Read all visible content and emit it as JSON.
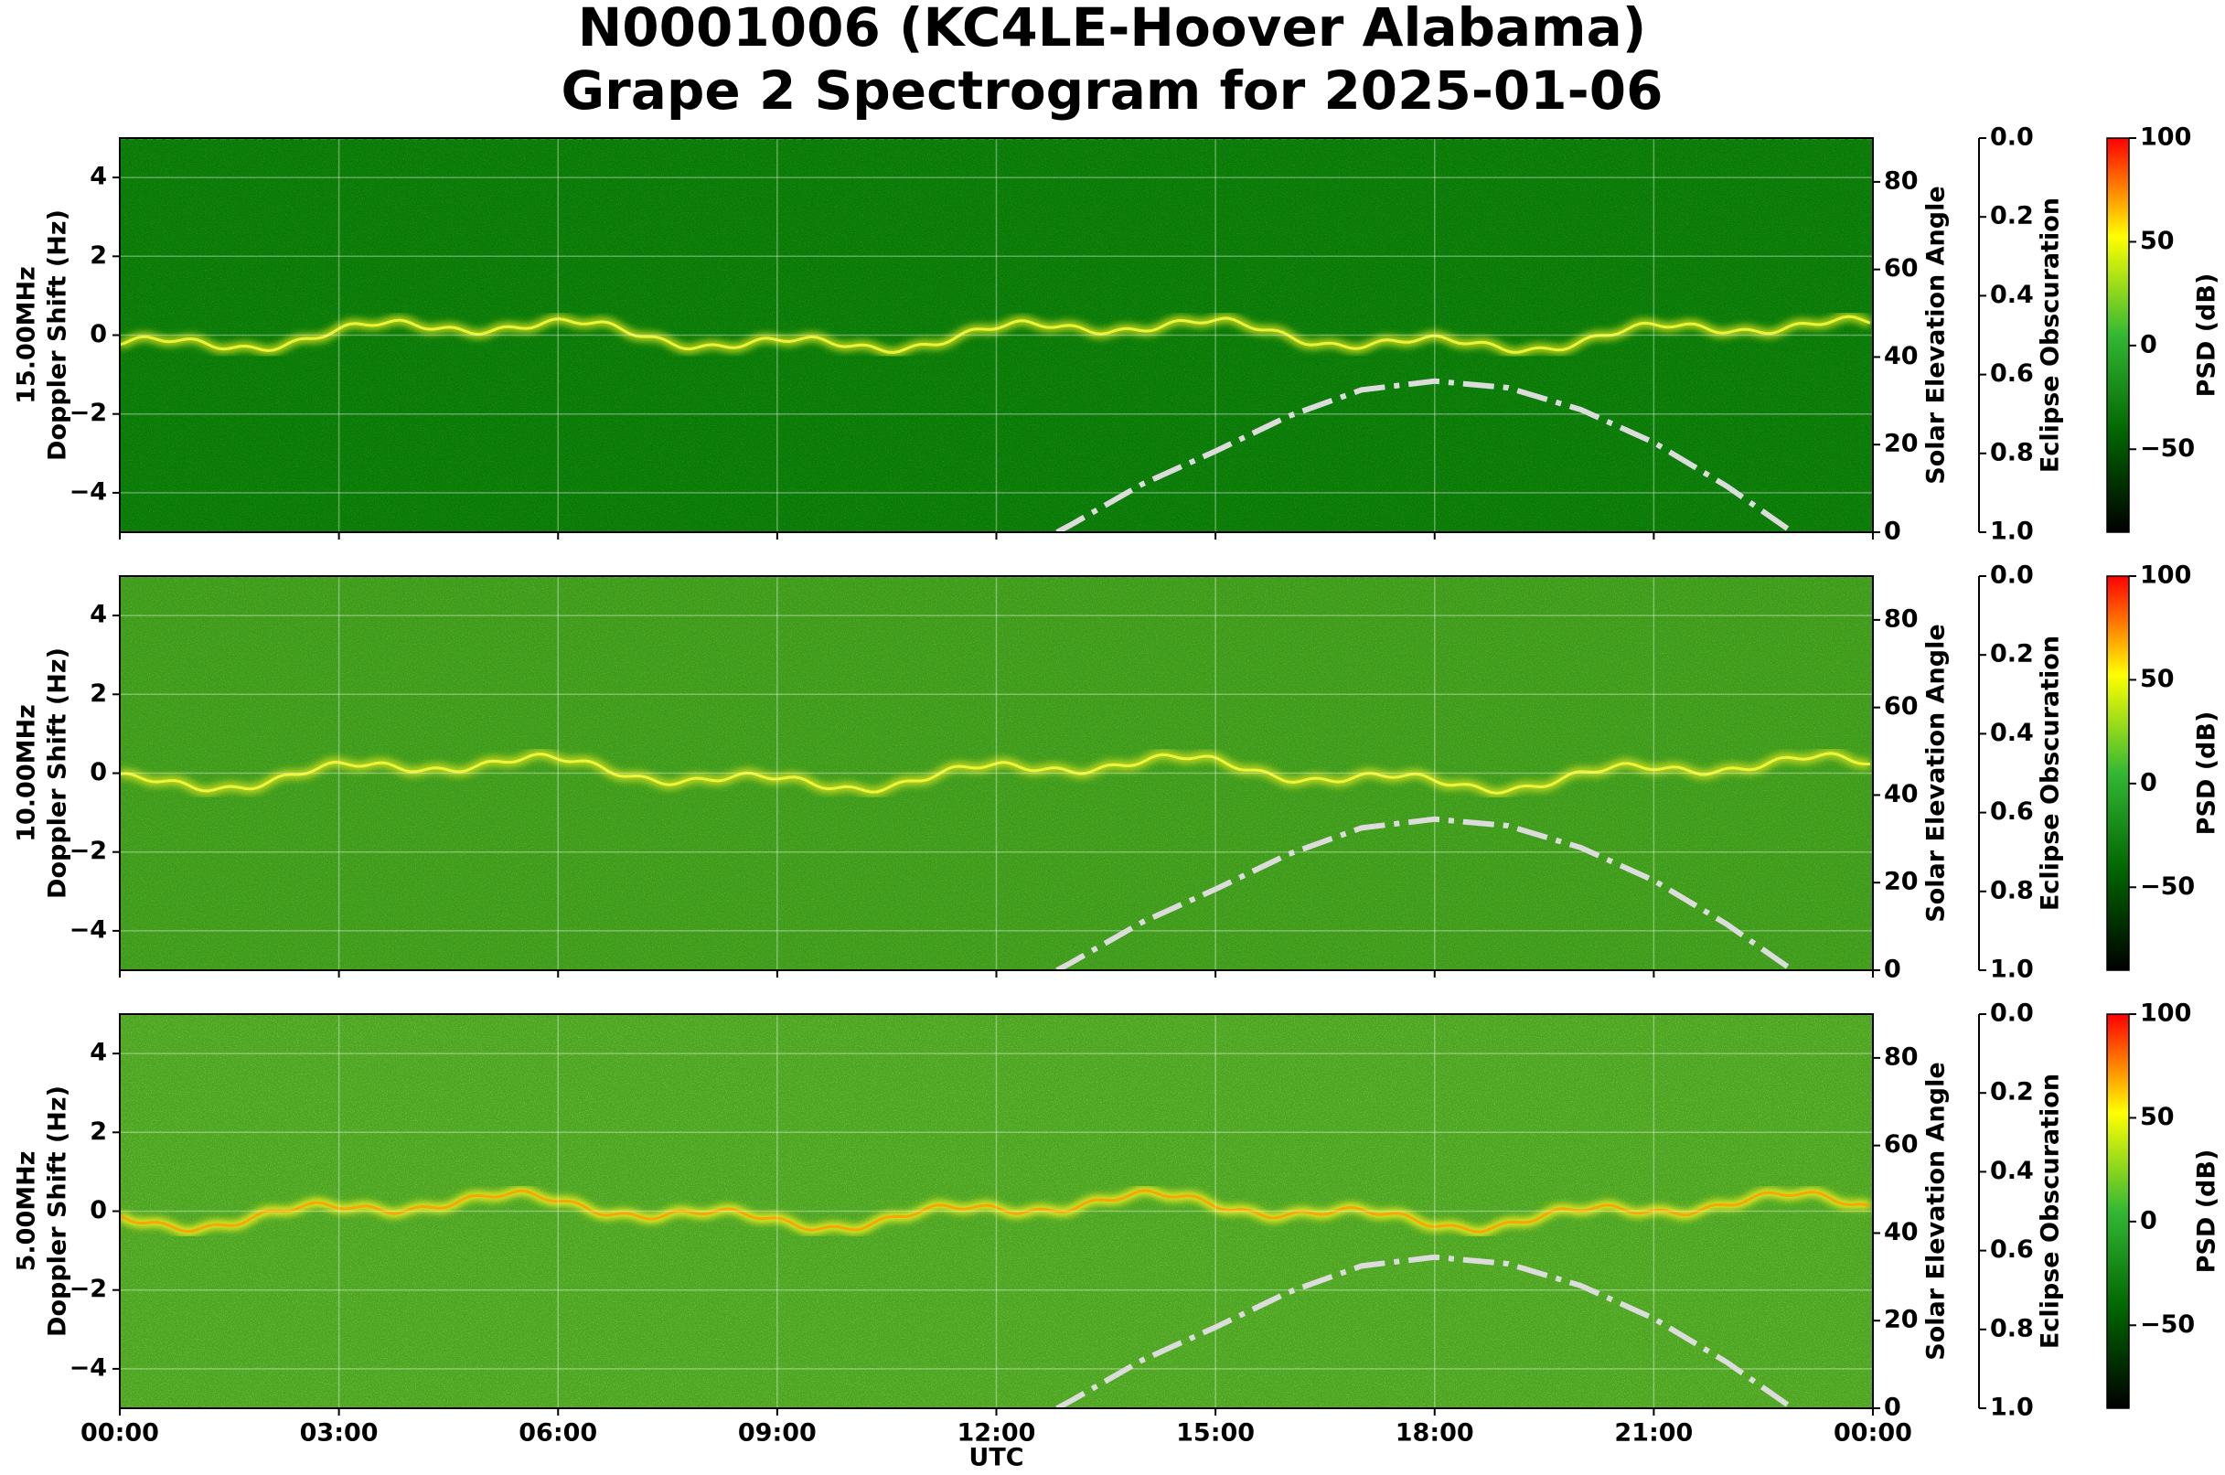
{
  "title": [
    "N0001006 (KC4LE-Hoover Alabama)",
    "Grape 2 Spectrogram for 2025-01-06"
  ],
  "xaxis": {
    "xlim": [
      0,
      24
    ],
    "xlabel": "UTC",
    "xticks": [
      {
        "value": 0,
        "label": "00:00"
      },
      {
        "value": 3,
        "label": "03:00"
      },
      {
        "value": 6,
        "label": "06:00"
      },
      {
        "value": 9,
        "label": "09:00"
      },
      {
        "value": 12,
        "label": "12:00"
      },
      {
        "value": 15,
        "label": "15:00"
      },
      {
        "value": 18,
        "label": "18:00"
      },
      {
        "value": 21,
        "label": "21:00"
      },
      {
        "value": 24,
        "label": "00:00"
      }
    ]
  },
  "chart_data": [
    {
      "type": "spectrogram",
      "ylabel": [
        "15.00MHz",
        "Doppler Shift (Hz)"
      ],
      "ylim": [
        -5,
        5
      ],
      "yticks": [
        {
          "value": -4,
          "label": "−4"
        },
        {
          "value": -2,
          "label": "−2"
        },
        0,
        2,
        4
      ],
      "grid": true,
      "y2label": "Solar Elevation Angle",
      "y2lim": [
        0,
        90
      ],
      "y2ticks": [
        0,
        20,
        40,
        60,
        80
      ],
      "y3label": "Eclipse Obscuration",
      "y3lim": [
        1,
        0
      ],
      "y3ticks": [
        {
          "value": 0,
          "label": "0.0"
        },
        0.2,
        0.4,
        0.6,
        0.8,
        {
          "value": 1,
          "label": "1.0"
        }
      ],
      "colorbar": {
        "label": "PSD (dB)",
        "lim": [
          -90,
          100
        ],
        "ticks": [
          {
            "value": -50,
            "label": "−50"
          },
          0,
          50,
          100
        ],
        "colors": [
          "#000000",
          "#006400",
          "#33b833",
          "#ffff00",
          "#ff0000"
        ]
      },
      "series": [
        {
          "axis": "y2",
          "color": "#dcdcdc",
          "x": [
            12.83,
            13,
            14,
            15,
            16,
            17,
            18,
            19,
            20,
            21,
            22,
            22.9
          ],
          "values": [
            0,
            1.5,
            11,
            18.5,
            26.5,
            32.5,
            34.5,
            33,
            28,
            20.5,
            10.5,
            0
          ]
        },
        {
          "axis": "y3",
          "color": "#b0b0b0",
          "x": [
            0,
            24
          ],
          "values": [
            0,
            0
          ]
        }
      ]
    },
    {
      "type": "spectrogram",
      "ylabel": [
        "10.00MHz",
        "Doppler Shift (Hz)"
      ],
      "ylim": [
        -5,
        5
      ],
      "yticks": [
        {
          "value": -4,
          "label": "−4"
        },
        {
          "value": -2,
          "label": "−2"
        },
        0,
        2,
        4
      ],
      "grid": true,
      "y2label": "Solar Elevation Angle",
      "y2lim": [
        0,
        90
      ],
      "y2ticks": [
        0,
        20,
        40,
        60,
        80
      ],
      "y3label": "Eclipse Obscuration",
      "y3lim": [
        1,
        0
      ],
      "y3ticks": [
        {
          "value": 0,
          "label": "0.0"
        },
        0.2,
        0.4,
        0.6,
        0.8,
        {
          "value": 1,
          "label": "1.0"
        }
      ],
      "colorbar": {
        "label": "PSD (dB)",
        "lim": [
          -90,
          100
        ],
        "ticks": [
          {
            "value": -50,
            "label": "−50"
          },
          0,
          50,
          100
        ],
        "colors": [
          "#000000",
          "#006400",
          "#33b833",
          "#ffff00",
          "#ff0000"
        ]
      },
      "series": [
        {
          "axis": "y2",
          "color": "#dcdcdc",
          "x": [
            12.83,
            13,
            14,
            15,
            16,
            17,
            18,
            19,
            20,
            21,
            22,
            22.9
          ],
          "values": [
            0,
            1.5,
            11,
            18.5,
            26.5,
            32.5,
            34.5,
            33,
            28,
            20.5,
            10.5,
            0
          ]
        },
        {
          "axis": "y3",
          "color": "#b0b0b0",
          "x": [
            0,
            24
          ],
          "values": [
            0,
            0
          ]
        }
      ]
    },
    {
      "type": "spectrogram",
      "ylabel": [
        "5.00MHz",
        "Doppler Shift (Hz)"
      ],
      "ylim": [
        -5,
        5
      ],
      "yticks": [
        {
          "value": -4,
          "label": "−4"
        },
        {
          "value": -2,
          "label": "−2"
        },
        0,
        2,
        4
      ],
      "grid": true,
      "y2label": "Solar Elevation Angle",
      "y2lim": [
        0,
        90
      ],
      "y2ticks": [
        0,
        20,
        40,
        60,
        80
      ],
      "y3label": "Eclipse Obscuration",
      "y3lim": [
        1,
        0
      ],
      "y3ticks": [
        {
          "value": 0,
          "label": "0.0"
        },
        0.2,
        0.4,
        0.6,
        0.8,
        {
          "value": 1,
          "label": "1.0"
        }
      ],
      "colorbar": {
        "label": "PSD (dB)",
        "lim": [
          -90,
          100
        ],
        "ticks": [
          {
            "value": -50,
            "label": "−50"
          },
          0,
          50,
          100
        ],
        "colors": [
          "#000000",
          "#006400",
          "#33b833",
          "#ffff00",
          "#ff0000"
        ]
      },
      "series": [
        {
          "axis": "y2",
          "color": "#dcdcdc",
          "x": [
            12.83,
            13,
            14,
            15,
            16,
            17,
            18,
            19,
            20,
            21,
            22,
            22.9
          ],
          "values": [
            0,
            1.5,
            11,
            18.5,
            26.5,
            32.5,
            34.5,
            33,
            28,
            20.5,
            10.5,
            0
          ]
        },
        {
          "axis": "y3",
          "color": "#b0b0b0",
          "x": [
            0,
            24
          ],
          "values": [
            0,
            0
          ]
        }
      ]
    }
  ]
}
